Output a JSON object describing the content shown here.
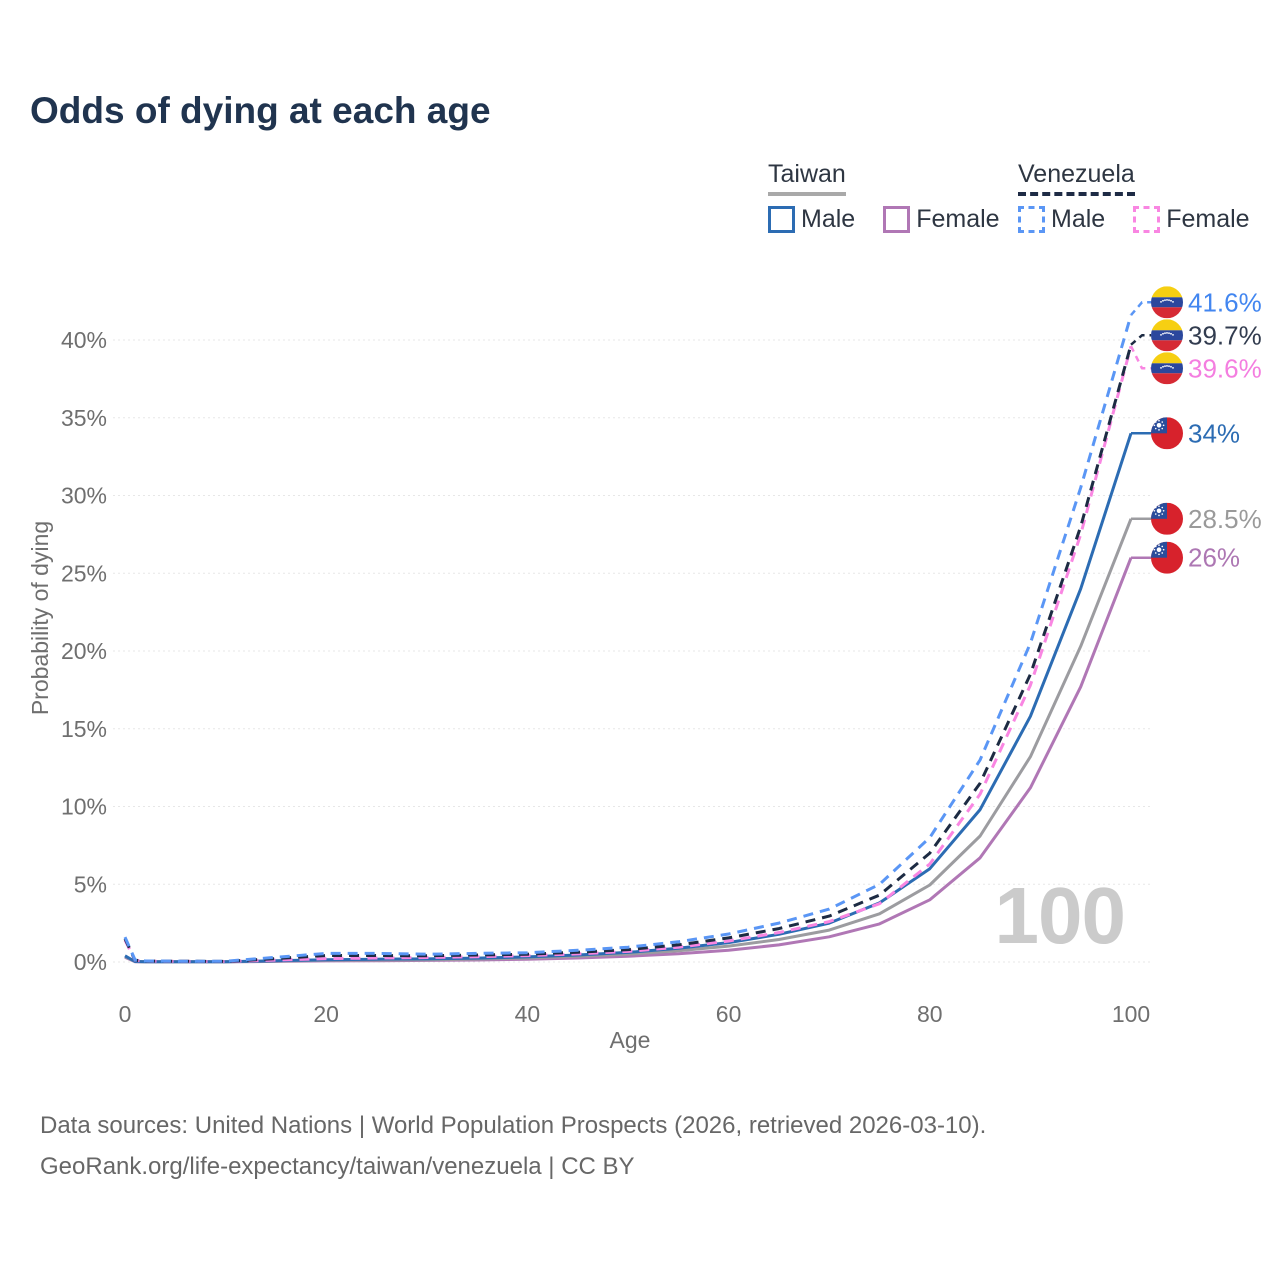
{
  "title": "Odds of dying at each age",
  "legend": {
    "groups": [
      {
        "name": "Taiwan",
        "line_style": "solid",
        "line_color": "#a9a9a9",
        "items": [
          {
            "label": "Male",
            "color": "#2c6cb3",
            "dashed": false
          },
          {
            "label": "Female",
            "color": "#b077b5",
            "dashed": false
          }
        ]
      },
      {
        "name": "Venezuela",
        "line_style": "dashed",
        "line_color": "#1e2b45",
        "items": [
          {
            "label": "Male",
            "color": "#5a96f5",
            "dashed": true
          },
          {
            "label": "Female",
            "color": "#f986e2",
            "dashed": true
          }
        ]
      }
    ]
  },
  "axes": {
    "x": {
      "label": "Age",
      "ticks": [
        0,
        20,
        40,
        60,
        80,
        100
      ],
      "min": 0,
      "max": 100
    },
    "y": {
      "label": "Probability of dying",
      "tick_values": [
        0,
        5,
        10,
        15,
        20,
        25,
        30,
        35,
        40
      ],
      "tick_labels": [
        "0%",
        "5%",
        "10%",
        "15%",
        "20%",
        "25%",
        "30%",
        "35%",
        "40%"
      ],
      "min": 0,
      "max": 43
    }
  },
  "watermark": "100",
  "footer": {
    "line1": "Data sources: United Nations | World Population Prospects (2026, retrieved 2026-03-10).",
    "line2": "GeoRank.org/life-expectancy/taiwan/venezuela | CC BY"
  },
  "chart_data": {
    "type": "line",
    "title": "Odds of dying at each age",
    "xlabel": "Age",
    "ylabel": "Probability of dying",
    "x_range": [
      0,
      100
    ],
    "y_range_percent": [
      0,
      43
    ],
    "grid": true,
    "x": [
      0,
      1,
      2,
      5,
      10,
      15,
      20,
      25,
      30,
      35,
      40,
      45,
      50,
      55,
      60,
      65,
      70,
      75,
      80,
      85,
      90,
      95,
      100
    ],
    "series": [
      {
        "name": "Venezuela Male",
        "country": "Venezuela",
        "sex": "male",
        "flag": "ve",
        "color": "#5a96f5",
        "label_color": "#4286f0",
        "dashed": true,
        "end_label": "41.6%",
        "end_value": 41.6,
        "values": [
          1.6,
          0.12,
          0.07,
          0.05,
          0.05,
          0.3,
          0.55,
          0.55,
          0.5,
          0.55,
          0.6,
          0.75,
          0.95,
          1.3,
          1.8,
          2.5,
          3.4,
          5.0,
          8.0,
          13.0,
          20.5,
          30.5,
          41.6
        ]
      },
      {
        "name": "Venezuela",
        "country": "Venezuela",
        "sex": "both",
        "flag": "ve",
        "color": "#1d2b43",
        "label_color": "#323c4f",
        "dashed": true,
        "end_label": "39.7%",
        "end_value": 39.7,
        "values": [
          1.5,
          0.11,
          0.06,
          0.05,
          0.04,
          0.22,
          0.42,
          0.42,
          0.4,
          0.45,
          0.5,
          0.63,
          0.8,
          1.1,
          1.55,
          2.15,
          2.95,
          4.3,
          7.0,
          11.5,
          18.5,
          28.0,
          39.7
        ]
      },
      {
        "name": "Venezuela Female",
        "country": "Venezuela",
        "sex": "female",
        "flag": "ve",
        "color": "#f986e2",
        "label_color": "#f47ee0",
        "dashed": true,
        "end_label": "39.6%",
        "end_value": 39.6,
        "values": [
          1.4,
          0.1,
          0.06,
          0.04,
          0.03,
          0.12,
          0.22,
          0.26,
          0.29,
          0.34,
          0.41,
          0.52,
          0.68,
          0.95,
          1.35,
          1.9,
          2.6,
          3.75,
          6.3,
          10.8,
          17.8,
          27.5,
          39.6
        ]
      },
      {
        "name": "Taiwan Male",
        "country": "Taiwan",
        "sex": "male",
        "flag": "tw",
        "color": "#2c6cb3",
        "label_color": "#2c6cb3",
        "dashed": false,
        "end_label": "34%",
        "end_value": 34,
        "values": [
          0.4,
          0.03,
          0.02,
          0.02,
          0.02,
          0.08,
          0.15,
          0.18,
          0.2,
          0.25,
          0.33,
          0.45,
          0.62,
          0.88,
          1.25,
          1.78,
          2.5,
          3.8,
          6.0,
          9.8,
          15.8,
          24.0,
          34.0
        ]
      },
      {
        "name": "Taiwan",
        "country": "Taiwan",
        "sex": "both",
        "flag": "tw",
        "color": "#9c9ca0",
        "label_color": "#9a9a9a",
        "dashed": false,
        "end_label": "28.5%",
        "end_value": 28.5,
        "values": [
          0.35,
          0.03,
          0.02,
          0.015,
          0.015,
          0.06,
          0.11,
          0.13,
          0.15,
          0.19,
          0.26,
          0.37,
          0.51,
          0.72,
          1.02,
          1.45,
          2.05,
          3.1,
          4.95,
          8.1,
          13.2,
          20.3,
          28.5
        ]
      },
      {
        "name": "Taiwan Female",
        "country": "Taiwan",
        "sex": "female",
        "flag": "tw",
        "color": "#b077b5",
        "label_color": "#ad77b3",
        "dashed": false,
        "end_label": "26%",
        "end_value": 26,
        "values": [
          0.3,
          0.02,
          0.015,
          0.01,
          0.01,
          0.04,
          0.07,
          0.08,
          0.1,
          0.13,
          0.18,
          0.26,
          0.37,
          0.53,
          0.76,
          1.1,
          1.62,
          2.45,
          4.0,
          6.7,
          11.2,
          17.7,
          26.0
        ]
      }
    ]
  }
}
